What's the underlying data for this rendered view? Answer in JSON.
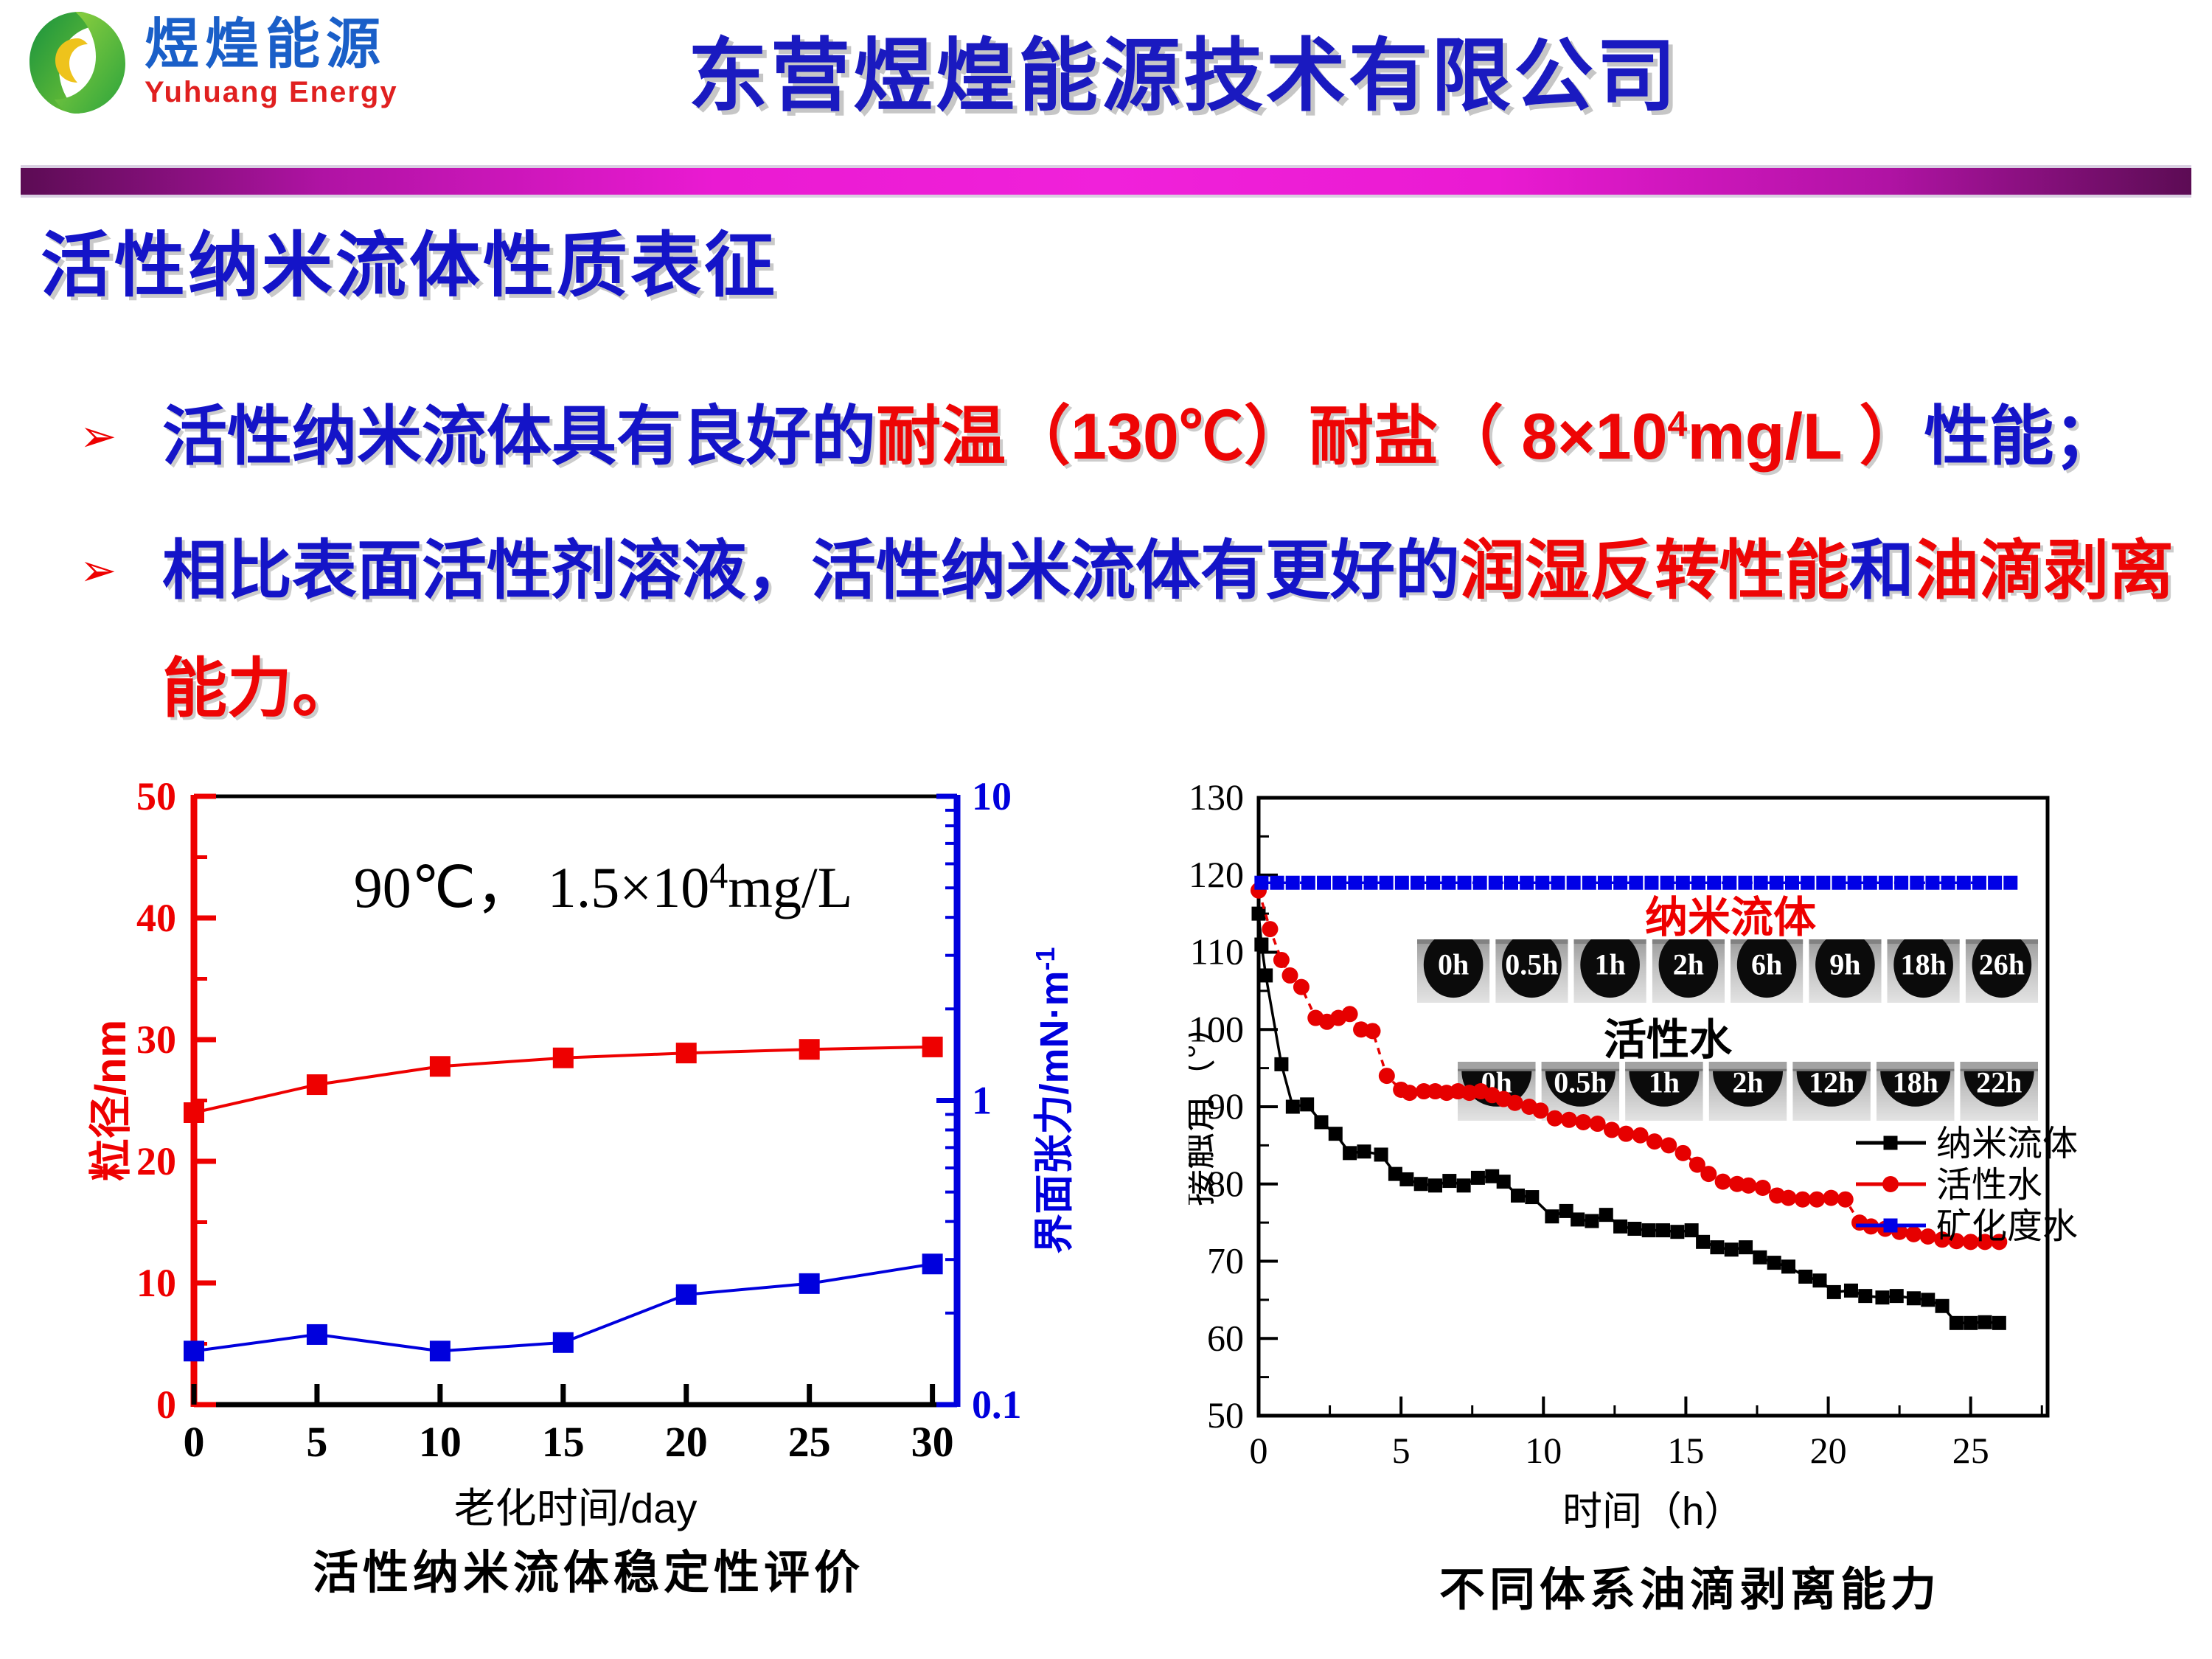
{
  "header": {
    "logo": {
      "name_cn": "煜煌能源",
      "name_en": "Yuhuang Energy"
    },
    "title": "东营煜煌能源技术有限公司"
  },
  "slide": {
    "title": "活性纳米流体性质表征",
    "bullet_marker": "➢",
    "bullets": [
      {
        "segments": [
          {
            "t": "活性纳米流体具有良好的",
            "c": "blue"
          },
          {
            "t": "耐温（130℃）耐盐（ 8×10",
            "c": "red"
          },
          {
            "t": "4",
            "c": "red",
            "sup": true
          },
          {
            "t": "mg/L ）",
            "c": "red"
          },
          {
            "t": "性能；",
            "c": "blue"
          }
        ]
      },
      {
        "segments": [
          {
            "t": "相比表面活性剂溶液，活性纳米流体有更好的",
            "c": "blue"
          },
          {
            "t": "润湿反转性能",
            "c": "red"
          },
          {
            "t": "和",
            "c": "blue"
          },
          {
            "t": "油滴剥离能力。",
            "c": "red"
          }
        ]
      }
    ]
  },
  "colors": {
    "title_blue": "#1a1ac0",
    "body_blue": "#1414c8",
    "accent_red": "#ee0505",
    "bar_magenta": "#ea1ad2",
    "bar_purple": "#5c0c54",
    "chart_red": "#ee0000",
    "chart_blue": "#0000dd",
    "chart_black": "#000000"
  },
  "chart_data": [
    {
      "id": "stability",
      "type": "line",
      "annotation": {
        "prefix": "90℃，  1.5×10",
        "sup": "4",
        "suffix": "mg/L"
      },
      "xlabel": "老化时间/day",
      "ylabel_left": "粒径/nm",
      "ylabel_right": {
        "prefix": "界面张力/mN·m",
        "sup": "-1"
      },
      "xlim": [
        0,
        31
      ],
      "xticks": [
        0,
        5,
        10,
        15,
        20,
        25,
        30
      ],
      "ylim_left": [
        0,
        50
      ],
      "yticks_left": [
        0,
        10,
        20,
        30,
        40,
        50
      ],
      "yminor_left": [
        5,
        15,
        25,
        35,
        45
      ],
      "ylim_right": [
        0.1,
        10
      ],
      "yticks_right": [
        0.1,
        1,
        10
      ],
      "grid": false,
      "series": [
        {
          "name": "粒径",
          "axis": "left",
          "color": "#ee0000",
          "marker": "square",
          "x": [
            0,
            5,
            10,
            15,
            20,
            25,
            30
          ],
          "y": [
            24,
            26.3,
            27.8,
            28.5,
            28.9,
            29.2,
            29.4
          ]
        },
        {
          "name": "界面张力",
          "axis": "right",
          "color": "#0000dd",
          "marker": "square",
          "x": [
            0,
            5,
            10,
            15,
            20,
            25,
            30
          ],
          "y": [
            0.15,
            0.17,
            0.15,
            0.16,
            0.23,
            0.25,
            0.29
          ]
        }
      ],
      "caption": "活性纳米流体稳定性评价"
    },
    {
      "id": "oil-peel",
      "type": "line",
      "xlabel": "时间（h）",
      "ylabel": "接触角（°）",
      "xlim": [
        0,
        27.7
      ],
      "xticks": [
        0,
        5,
        10,
        15,
        20,
        25
      ],
      "xminor": [
        2.5,
        7.5,
        12.5,
        17.5,
        22.5,
        27.5
      ],
      "ylim": [
        50,
        130
      ],
      "yticks": [
        50,
        60,
        70,
        80,
        90,
        100,
        110,
        120,
        130
      ],
      "yminor": [
        55,
        65,
        75,
        85,
        95,
        105,
        115,
        125
      ],
      "grid": false,
      "legend_position": "right-middle",
      "series": [
        {
          "name": "纳米流体",
          "color": "#000000",
          "marker": "square",
          "line": "solid",
          "x": [
            0,
            0.1,
            0.25,
            0.8,
            1.2,
            1.7,
            2.2,
            2.7,
            3.2,
            3.7,
            4.3,
            4.8,
            5.2,
            5.7,
            6.2,
            6.7,
            7.2,
            7.7,
            8.2,
            8.6,
            9.1,
            9.6,
            10.3,
            10.8,
            11.2,
            11.7,
            12.2,
            12.7,
            13.2,
            13.7,
            14.2,
            14.7,
            15.2,
            15.6,
            16.1,
            16.6,
            17.1,
            17.6,
            18.1,
            18.6,
            19.2,
            19.7,
            20.2,
            20.8,
            21.3,
            21.9,
            22.4,
            23.0,
            23.5,
            24.0,
            24.5,
            25.0,
            25.5,
            26.0
          ],
          "y": [
            115,
            111,
            107,
            95.5,
            90,
            90.3,
            88,
            86.5,
            84,
            84.2,
            83.8,
            81.3,
            80.6,
            80.0,
            79.8,
            80.4,
            79.8,
            80.8,
            81.0,
            80.3,
            78.5,
            78.3,
            75.8,
            76.5,
            75.4,
            75.2,
            76.0,
            74.5,
            74.2,
            74.0,
            74.0,
            73.8,
            74.0,
            72.5,
            71.8,
            71.5,
            71.8,
            70.5,
            69.8,
            69.3,
            68.0,
            67.5,
            66.0,
            66.2,
            65.5,
            65.3,
            65.5,
            65.2,
            65.0,
            64.2,
            62.0,
            62.0,
            62.1,
            62.0
          ]
        },
        {
          "name": "活性水",
          "color": "#e60000",
          "marker": "circle",
          "line": "dashed",
          "x": [
            0,
            0.4,
            0.8,
            1.1,
            1.5,
            2.0,
            2.4,
            2.8,
            3.2,
            3.6,
            4.0,
            4.5,
            5.0,
            5.3,
            5.8,
            6.2,
            6.6,
            7.0,
            7.4,
            7.8,
            8.2,
            8.6,
            9.0,
            9.5,
            9.9,
            10.4,
            10.9,
            11.4,
            11.9,
            12.4,
            12.9,
            13.4,
            13.9,
            14.4,
            14.9,
            15.4,
            15.8,
            16.3,
            16.8,
            17.2,
            17.7,
            18.2,
            18.6,
            19.1,
            19.6,
            20.1,
            20.6,
            21.1,
            21.5,
            22.0,
            22.5,
            23.0,
            23.5,
            24.0,
            24.5,
            25.0,
            25.5,
            26.0
          ],
          "y": [
            118,
            113,
            109,
            107,
            105.5,
            101.5,
            101,
            101.5,
            102,
            100,
            99.8,
            94,
            92.2,
            91.8,
            92,
            92,
            91.8,
            92,
            91.8,
            92,
            91.5,
            91,
            90.5,
            90,
            89.5,
            88.5,
            88.3,
            88,
            87.8,
            87,
            86.5,
            86.3,
            85.5,
            85,
            84,
            82.5,
            81.3,
            80.3,
            80,
            79.8,
            79.5,
            78.5,
            78.2,
            78,
            78,
            78.2,
            78,
            75,
            74.5,
            74.2,
            73.8,
            73.5,
            73.2,
            72.8,
            72.6,
            72.5,
            72.5,
            72.5
          ]
        },
        {
          "name": "矿化度水",
          "color": "#0000e6",
          "marker": "square",
          "line": "dashed",
          "const_y": 119,
          "x_start": 0.1,
          "x_end": 26.4,
          "points": 49
        }
      ],
      "insets": [
        {
          "label": "纳米流体",
          "label_color": "#ee0000",
          "shape": "round",
          "times": [
            "0h",
            "0.5h",
            "1h",
            "2h",
            "6h",
            "9h",
            "18h",
            "26h"
          ]
        },
        {
          "label": "活性水",
          "label_color": "#000000",
          "shape": "flat",
          "times": [
            "0h",
            "0.5h",
            "1h",
            "2h",
            "12h",
            "18h",
            "22h"
          ]
        }
      ],
      "caption": "不同体系油滴剥离能力"
    }
  ]
}
